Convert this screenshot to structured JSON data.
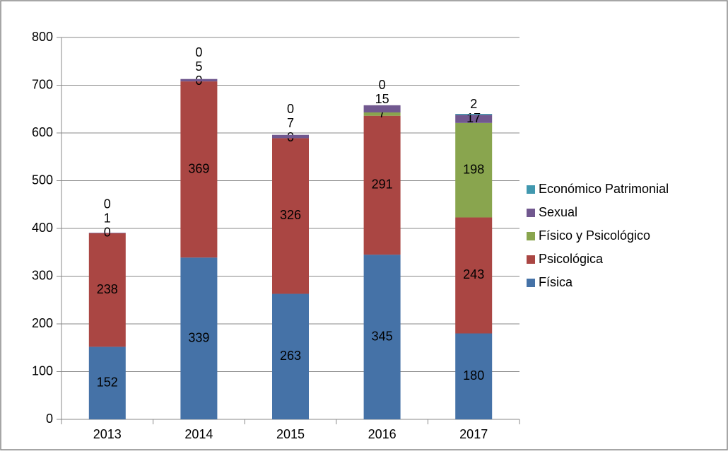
{
  "chart_data": {
    "type": "stacked_bar",
    "categories": [
      "2013",
      "2014",
      "2015",
      "2016",
      "2017"
    ],
    "series": [
      {
        "name": "Física",
        "color": "#4572a7",
        "values": [
          152,
          339,
          263,
          345,
          180
        ]
      },
      {
        "name": "Psicológica",
        "color": "#aa4643",
        "values": [
          238,
          369,
          326,
          291,
          243
        ]
      },
      {
        "name": "Físico y Psicológico",
        "color": "#89a54e",
        "values": [
          0,
          0,
          0,
          7,
          198
        ]
      },
      {
        "name": "Sexual",
        "color": "#71588f",
        "values": [
          1,
          5,
          7,
          15,
          17
        ]
      },
      {
        "name": "Económico Patrimonial",
        "color": "#4198af",
        "values": [
          0,
          0,
          0,
          0,
          2
        ]
      }
    ],
    "ylim": [
      0,
      800
    ],
    "yticks": [
      0,
      100,
      200,
      300,
      400,
      500,
      600,
      700,
      800
    ],
    "grid": true,
    "legend": "right"
  }
}
